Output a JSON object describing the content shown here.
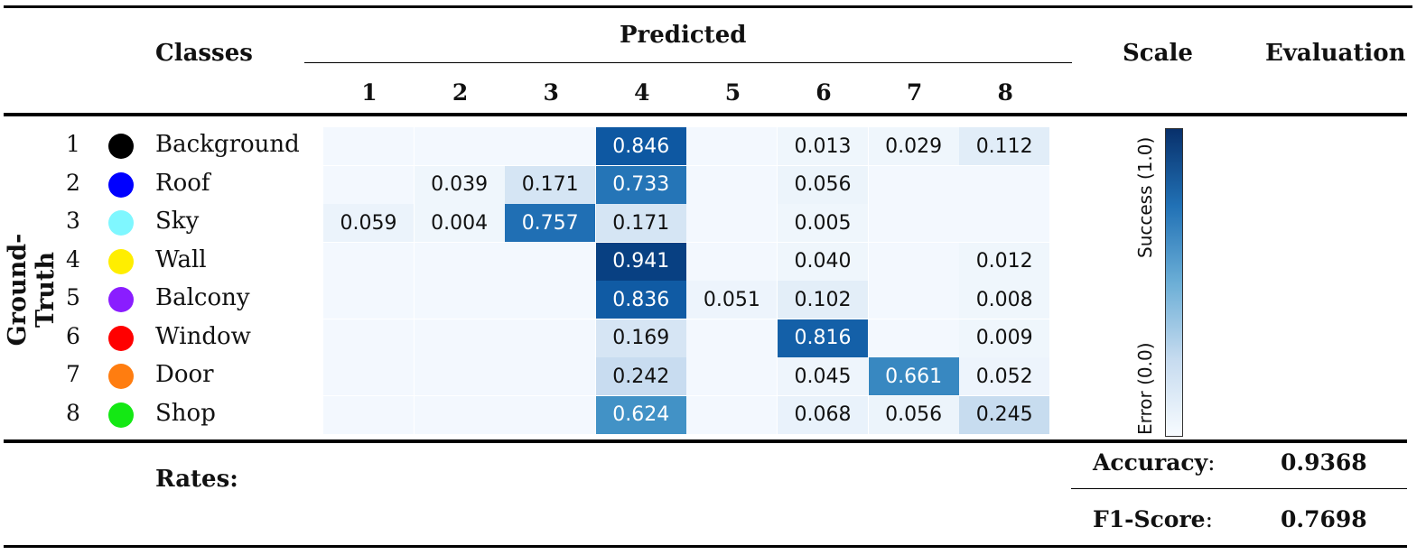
{
  "header": {
    "classes": "Classes",
    "predicted": "Predicted",
    "scale": "Scale",
    "evaluation": "Evaluation",
    "ground_truth": "Ground-Truth",
    "rates": "Rates:"
  },
  "classes": [
    {
      "num": "1",
      "name": "Background",
      "color": "#000000"
    },
    {
      "num": "2",
      "name": "Roof",
      "color": "#0000ff"
    },
    {
      "num": "3",
      "name": "Sky",
      "color": "#7ff7ff"
    },
    {
      "num": "4",
      "name": "Wall",
      "color": "#ffee00"
    },
    {
      "num": "5",
      "name": "Balcony",
      "color": "#8a1dff"
    },
    {
      "num": "6",
      "name": "Window",
      "color": "#ff0000"
    },
    {
      "num": "7",
      "name": "Door",
      "color": "#ff7d10"
    },
    {
      "num": "8",
      "name": "Shop",
      "color": "#14e814"
    }
  ],
  "predicted_labels": [
    "1",
    "2",
    "3",
    "4",
    "5",
    "6",
    "7",
    "8"
  ],
  "chart_data": {
    "type": "heatmap",
    "x_categories": [
      "1",
      "2",
      "3",
      "4",
      "5",
      "6",
      "7",
      "8"
    ],
    "y_categories": [
      "1",
      "2",
      "3",
      "4",
      "5",
      "6",
      "7",
      "8"
    ],
    "values": [
      [
        "",
        "",
        "",
        "0.846",
        "",
        "0.013",
        "0.029",
        "0.112"
      ],
      [
        "",
        "0.039",
        "0.171",
        "0.733",
        "",
        "0.056",
        "",
        ""
      ],
      [
        "0.059",
        "0.004",
        "0.757",
        "0.171",
        "",
        "0.005",
        "",
        ""
      ],
      [
        "",
        "",
        "",
        "0.941",
        "",
        "0.040",
        "",
        "0.012"
      ],
      [
        "",
        "",
        "",
        "0.836",
        "0.051",
        "0.102",
        "",
        "0.008"
      ],
      [
        "",
        "",
        "",
        "0.169",
        "",
        "0.816",
        "",
        "0.009"
      ],
      [
        "",
        "",
        "",
        "0.242",
        "",
        "0.045",
        "0.661",
        "0.052"
      ],
      [
        "",
        "",
        "",
        "0.624",
        "",
        "0.068",
        "0.056",
        "0.245"
      ]
    ],
    "colorscale": "Blues",
    "range": [
      0,
      1
    ]
  },
  "scale": {
    "top_label": "Success (1.0)",
    "bottom_label": "Error (0.0)"
  },
  "evaluation": {
    "accuracy_label": "Accuracy",
    "accuracy_colon": ":",
    "accuracy_value": "0.9368",
    "f1_label": "F1-Score",
    "f1_colon": ":",
    "f1_value": "0.7698"
  }
}
